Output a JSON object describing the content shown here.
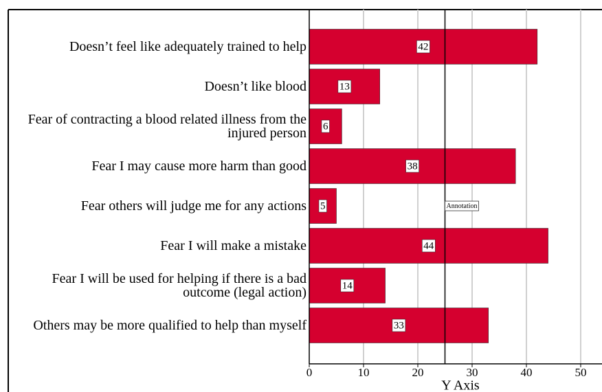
{
  "chart_data": {
    "type": "bar",
    "orientation": "horizontal",
    "categories": [
      "Doesn’t feel like adequately trained to help",
      "Doesn’t like blood",
      "Fear of contracting a blood related illness from the injured person",
      "Fear I may cause more harm than good",
      "Fear others will judge me for any actions",
      "Fear I will make a mistake",
      "Fear I will be used for helping if there is a bad outcome (legal action)",
      "Others may be more qualified to help than myself"
    ],
    "values": [
      42,
      13,
      6,
      38,
      5,
      44,
      14,
      33
    ],
    "color": "#d5002f",
    "xlabel": "Y Axis",
    "xlim": [
      0,
      54
    ],
    "xticks": [
      0,
      10,
      20,
      30,
      40,
      50
    ],
    "grid": true,
    "annotation": {
      "x": 25,
      "text": "Annotation"
    }
  }
}
